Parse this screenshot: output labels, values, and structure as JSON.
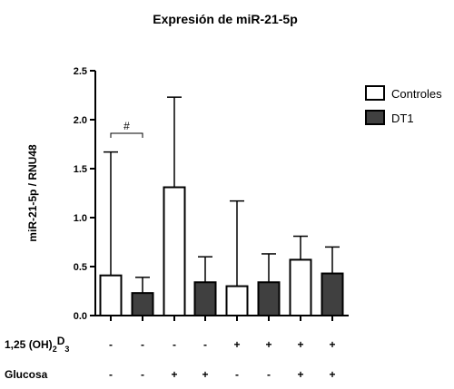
{
  "chart_data": {
    "type": "bar",
    "title": "Expresión de miR-21-5p",
    "ylabel": "miR-21-5p / RNU48",
    "xlabel": "",
    "ylim": [
      0,
      2.5
    ],
    "yticks": [
      "0.0",
      "0.5",
      "1.0",
      "1.5",
      "2.0",
      "2.5"
    ],
    "grid": false,
    "legend_position": "top-right",
    "series": [
      {
        "name": "Controles",
        "color": "#ffffff"
      },
      {
        "name": "DT1",
        "color": "#404040"
      }
    ],
    "bars": [
      {
        "series": 0,
        "value": 0.41,
        "error": 1.26
      },
      {
        "series": 1,
        "value": 0.23,
        "error": 0.16
      },
      {
        "series": 0,
        "value": 1.31,
        "error": 0.92
      },
      {
        "series": 1,
        "value": 0.34,
        "error": 0.26
      },
      {
        "series": 0,
        "value": 0.3,
        "error": 0.87
      },
      {
        "series": 1,
        "value": 0.34,
        "error": 0.29
      },
      {
        "series": 0,
        "value": 0.57,
        "error": 0.24
      },
      {
        "series": 1,
        "value": 0.43,
        "error": 0.27
      }
    ],
    "annotation": {
      "symbol": "#",
      "from_bar": 0,
      "to_bar": 1
    },
    "conditions": [
      {
        "label_main": "1,25 (OH)",
        "label_sub1": "2",
        "label_mid": "D",
        "label_sub2": "3",
        "signs": [
          "-",
          "-",
          "-",
          "-",
          "+",
          "+",
          "+",
          "+"
        ]
      },
      {
        "label_main": "Glucosa",
        "label_sub1": "",
        "label_mid": "",
        "label_sub2": "",
        "signs": [
          "-",
          "-",
          "+",
          "+",
          "-",
          "-",
          "+",
          "+"
        ]
      }
    ]
  }
}
